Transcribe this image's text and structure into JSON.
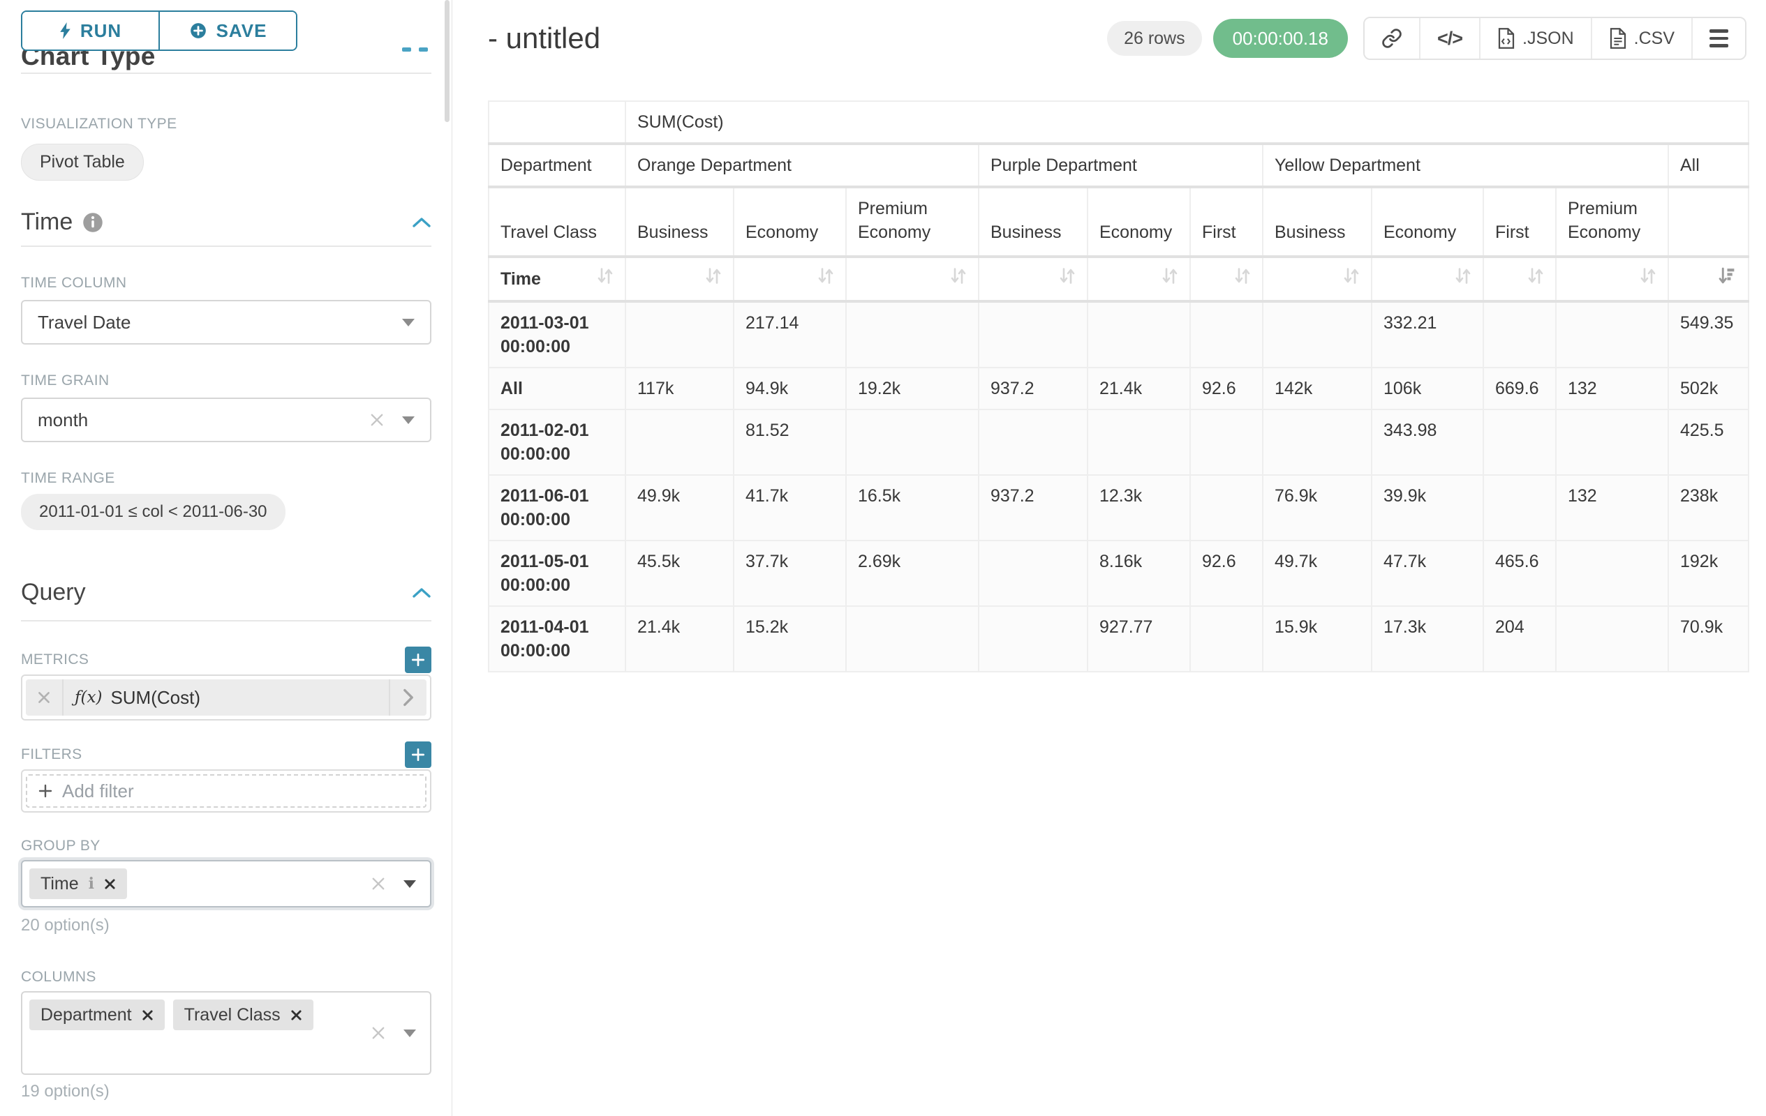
{
  "colors": {
    "accent_teal": "#2b7e9d",
    "plus_teal": "#3a87a5",
    "timer_green": "#71bd8c",
    "chevron_blue": "#3ba1c5"
  },
  "icons": {
    "run": "lightning-bolt",
    "save": "plus-circle",
    "section_info": "info-circle",
    "section_collapse": "chevron-up",
    "select_clear": "x",
    "select_caret": "caret-down",
    "metric_remove": "x",
    "metric_open": "chevron-right",
    "add": "plus",
    "chip_remove": "x",
    "chip_info": "i",
    "link": "chain-link",
    "code": "</>",
    "json_file": "file-code",
    "csv_file": "file-lines",
    "menu": "hamburger",
    "sort": "up-down-arrows",
    "sort_active": "sort-desc-bars"
  },
  "sidebar": {
    "run_label": "RUN",
    "save_label": "SAVE",
    "chart_type_heading": "Chart Type",
    "viz_type_label": "VISUALIZATION TYPE",
    "viz_type_value": "Pivot Table",
    "time": {
      "heading": "Time",
      "time_column_label": "TIME COLUMN",
      "time_column_value": "Travel Date",
      "time_grain_label": "TIME GRAIN",
      "time_grain_value": "month",
      "time_range_label": "TIME RANGE",
      "time_range_value": "2011-01-01 ≤ col < 2011-06-30"
    },
    "query": {
      "heading": "Query",
      "metrics_label": "METRICS",
      "metric_fx": "ƒ(x)",
      "metric_value": "SUM(Cost)",
      "filters_label": "FILTERS",
      "add_filter_label": "Add filter",
      "group_by_label": "GROUP BY",
      "group_by_chips": [
        "Time"
      ],
      "group_by_options": "20 option(s)",
      "columns_label": "COLUMNS",
      "columns_chips": [
        "Department",
        "Travel Class"
      ],
      "columns_options": "19 option(s)"
    }
  },
  "header": {
    "title": "- untitled",
    "rows_badge": "26 rows",
    "timer_badge": "00:00:00.18",
    "json_label": ".JSON",
    "csv_label": ".CSV",
    "code_glyph": "</>"
  },
  "table": {
    "metric_header": "SUM(Cost)",
    "corner_department": "Department",
    "corner_travel_class": "Travel Class",
    "corner_time": "Time",
    "groups": [
      {
        "label": "Orange Department",
        "cols": [
          "Business",
          "Economy",
          "Premium Economy"
        ]
      },
      {
        "label": "Purple Department",
        "cols": [
          "Business",
          "Economy",
          "First"
        ]
      },
      {
        "label": "Yellow Department",
        "cols": [
          "Business",
          "Economy",
          "First",
          "Premium Economy"
        ]
      },
      {
        "label": "All",
        "cols": [
          ""
        ]
      }
    ],
    "rows": [
      {
        "label": "2011-03-01 00:00:00",
        "values": [
          "",
          "217.14",
          "",
          "",
          "",
          "",
          "",
          "332.21",
          "",
          "",
          "549.35"
        ]
      },
      {
        "label": "All",
        "values": [
          "117k",
          "94.9k",
          "19.2k",
          "937.2",
          "21.4k",
          "92.6",
          "142k",
          "106k",
          "669.6",
          "132",
          "502k"
        ]
      },
      {
        "label": "2011-02-01 00:00:00",
        "values": [
          "",
          "81.52",
          "",
          "",
          "",
          "",
          "",
          "343.98",
          "",
          "",
          "425.5"
        ]
      },
      {
        "label": "2011-06-01 00:00:00",
        "values": [
          "49.9k",
          "41.7k",
          "16.5k",
          "937.2",
          "12.3k",
          "",
          "76.9k",
          "39.9k",
          "",
          "132",
          "238k"
        ]
      },
      {
        "label": "2011-05-01 00:00:00",
        "values": [
          "45.5k",
          "37.7k",
          "2.69k",
          "",
          "8.16k",
          "92.6",
          "49.7k",
          "47.7k",
          "465.6",
          "",
          "192k"
        ]
      },
      {
        "label": "2011-04-01 00:00:00",
        "values": [
          "21.4k",
          "15.2k",
          "",
          "",
          "927.77",
          "",
          "15.9k",
          "17.3k",
          "204",
          "",
          "70.9k"
        ]
      }
    ]
  }
}
